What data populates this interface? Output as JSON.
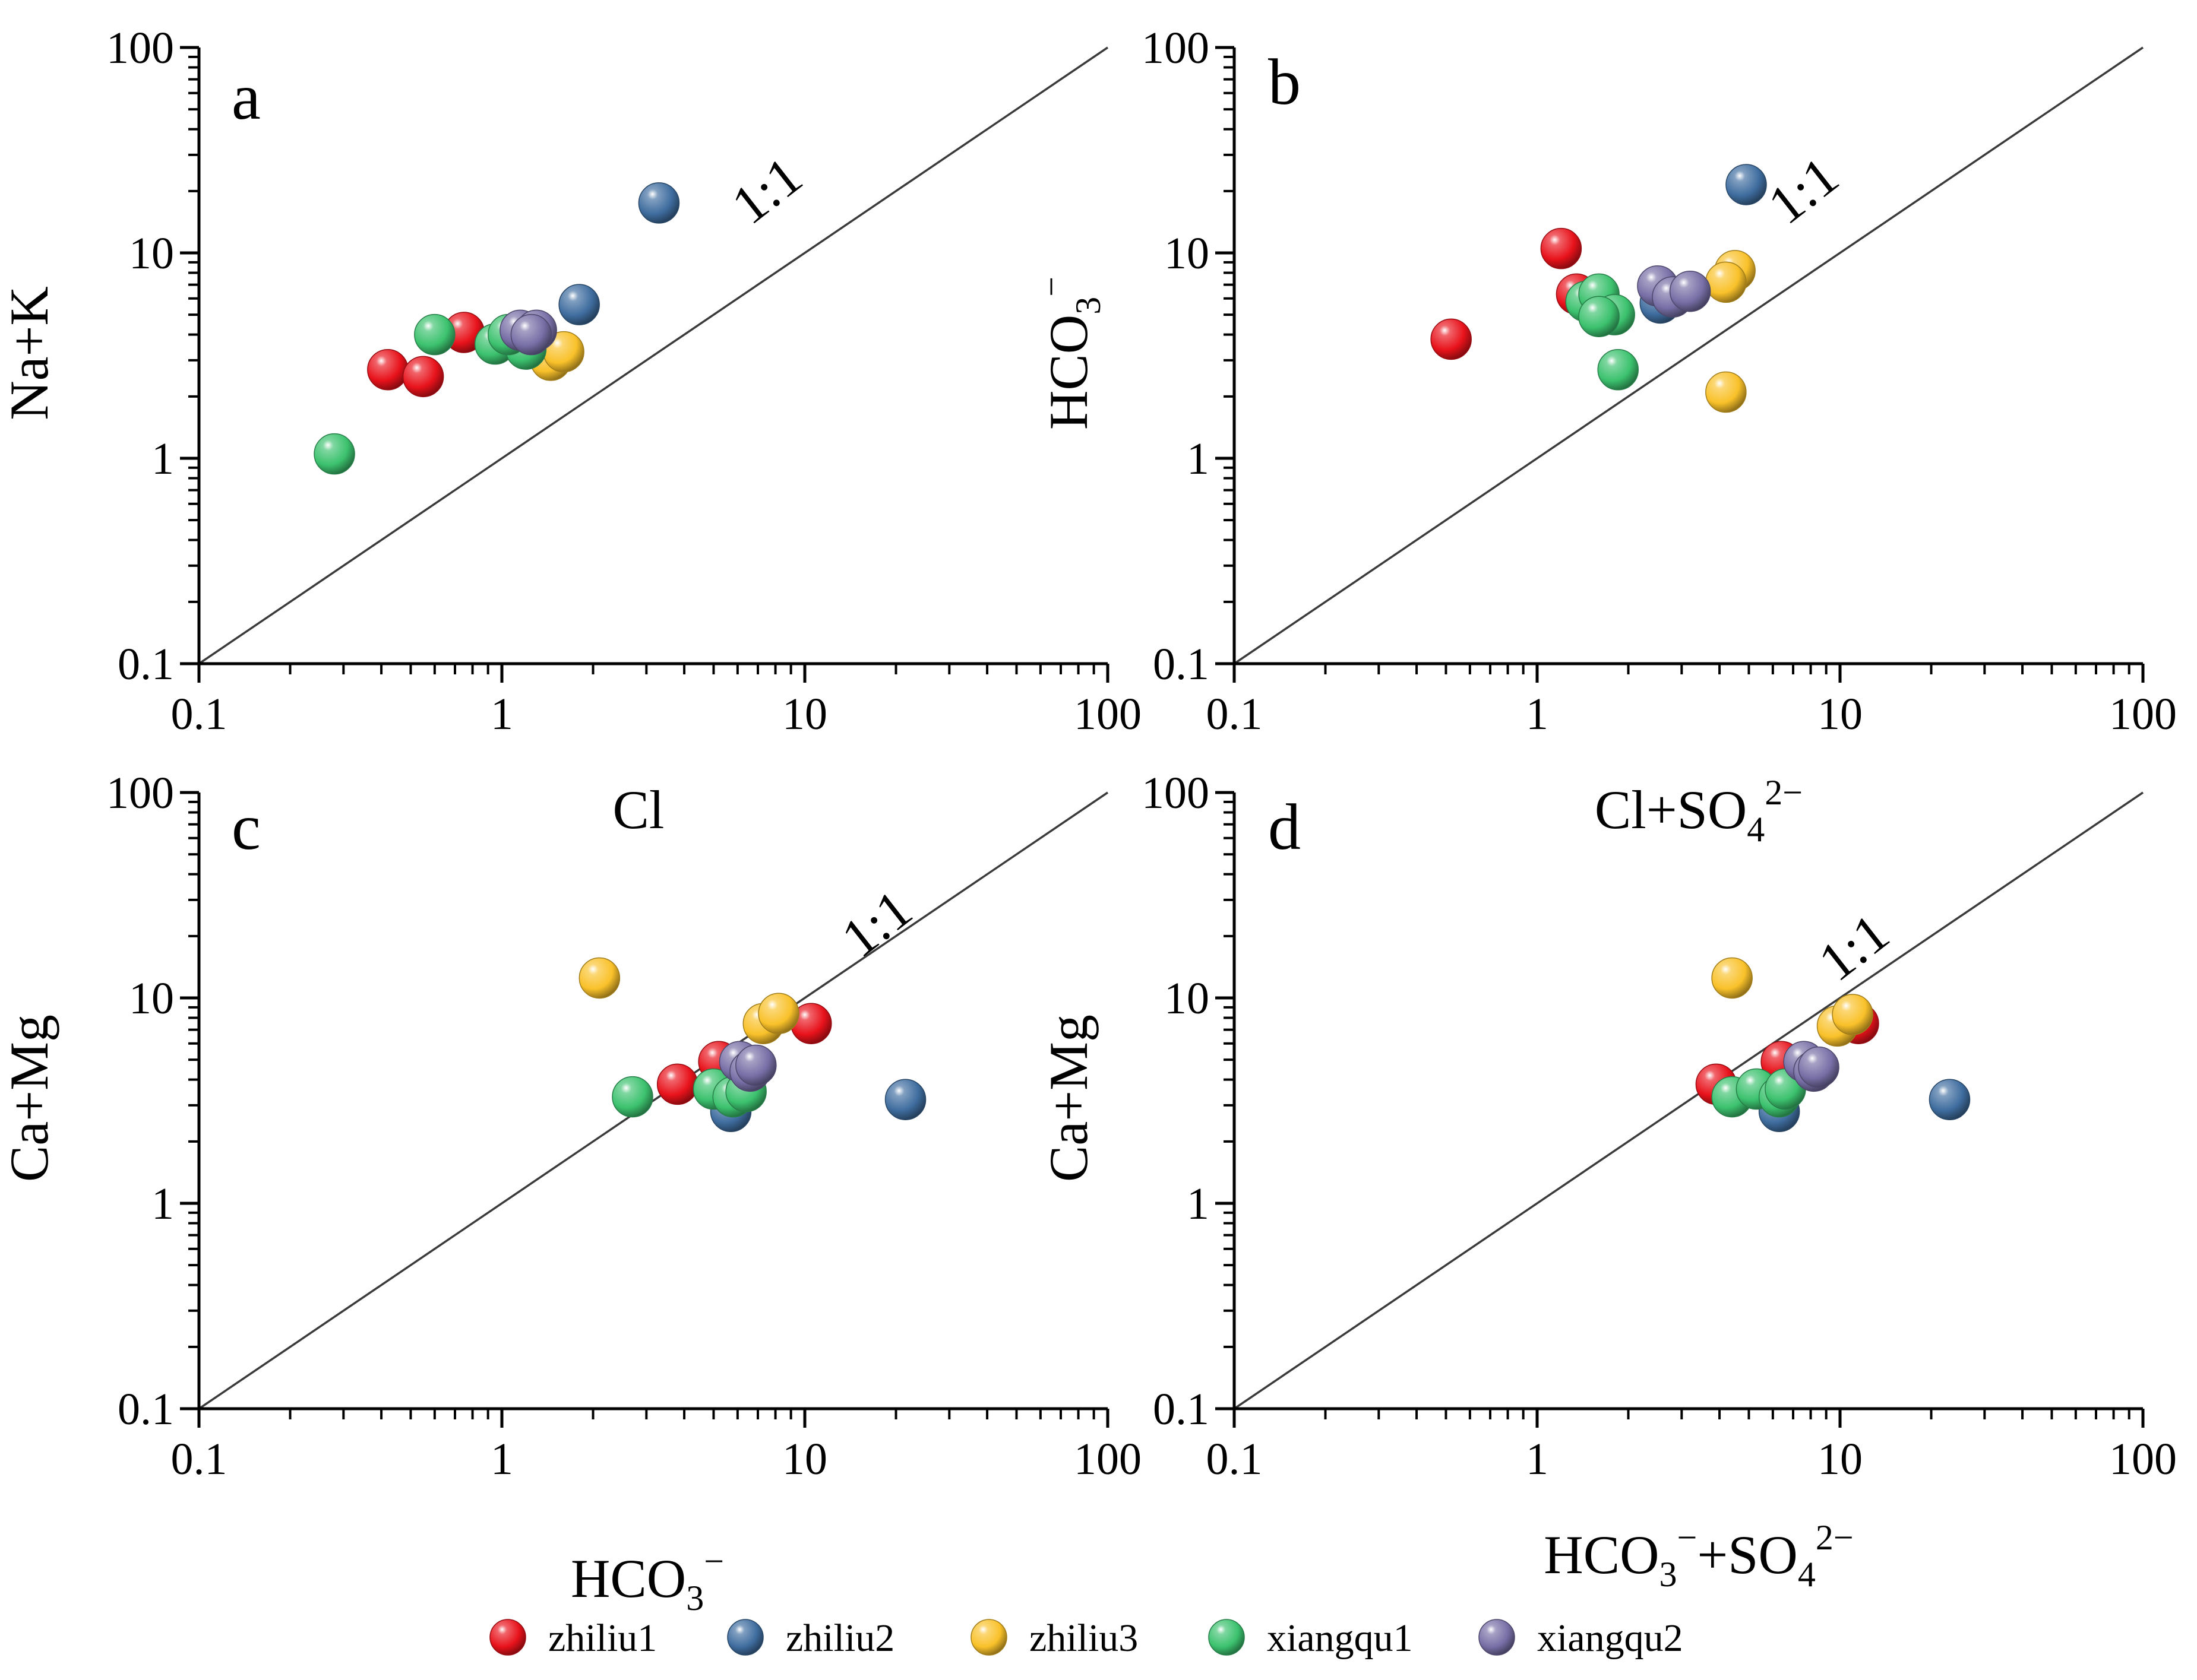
{
  "chart_data": [
    {
      "type": "scatter",
      "panel": "a",
      "xscale": "log",
      "yscale": "log",
      "xlim": [
        0.1,
        100
      ],
      "ylim": [
        0.1,
        100
      ],
      "xticks": [
        "0.1",
        "1",
        "10",
        "100"
      ],
      "yticks": [
        "0.1",
        "1",
        "10",
        "100"
      ],
      "xlabel": {
        "text": "Cl",
        "sub": "",
        "sup": "",
        "text2": "",
        "sup2": ""
      },
      "ylabel": {
        "text": "Na+K",
        "sub": "",
        "sup": ""
      },
      "ref_line_label": "1:1",
      "series": [
        {
          "name": "zhiliu1",
          "points": [
            [
              0.75,
              4.1
            ],
            [
              0.42,
              2.7
            ],
            [
              0.55,
              2.5
            ]
          ]
        },
        {
          "name": "zhiliu2",
          "points": [
            [
              3.3,
              17.5
            ],
            [
              1.8,
              5.6
            ]
          ]
        },
        {
          "name": "zhiliu3",
          "points": [
            [
              1.45,
              3.0
            ],
            [
              1.6,
              3.3
            ]
          ]
        },
        {
          "name": "xiangqu1",
          "points": [
            [
              0.28,
              1.05
            ],
            [
              0.6,
              4.0
            ],
            [
              0.95,
              3.6
            ],
            [
              1.2,
              3.4
            ],
            [
              1.05,
              4.0
            ]
          ]
        },
        {
          "name": "xiangqu2",
          "points": [
            [
              1.15,
              4.2
            ],
            [
              1.3,
              4.2
            ],
            [
              1.25,
              4.0
            ]
          ]
        }
      ]
    },
    {
      "type": "scatter",
      "panel": "b",
      "xscale": "log",
      "yscale": "log",
      "xlim": [
        0.1,
        100
      ],
      "ylim": [
        0.1,
        100
      ],
      "xticks": [
        "0.1",
        "1",
        "10",
        "100"
      ],
      "yticks": [
        "0.1",
        "1",
        "10",
        "100"
      ],
      "xlabel": {
        "text": "Cl+SO",
        "sub": "4",
        "sup": "2−",
        "text2": "",
        "sup2": ""
      },
      "ylabel": {
        "text": "HCO",
        "sub": "3",
        "sup": "−"
      },
      "ref_line_label": "1:1",
      "series": [
        {
          "name": "zhiliu1",
          "points": [
            [
              0.52,
              3.8
            ],
            [
              1.2,
              10.5
            ],
            [
              1.35,
              6.3
            ]
          ]
        },
        {
          "name": "zhiliu2",
          "points": [
            [
              4.9,
              21.5
            ],
            [
              2.55,
              5.7
            ]
          ]
        },
        {
          "name": "zhiliu3",
          "points": [
            [
              4.5,
              8.2
            ],
            [
              4.2,
              7.2
            ],
            [
              4.2,
              2.1
            ]
          ]
        },
        {
          "name": "xiangqu1",
          "points": [
            [
              1.85,
              2.7
            ],
            [
              1.45,
              5.8
            ],
            [
              1.6,
              6.3
            ],
            [
              1.8,
              5.0
            ],
            [
              1.6,
              4.9
            ]
          ]
        },
        {
          "name": "xiangqu2",
          "points": [
            [
              2.5,
              6.9
            ],
            [
              2.8,
              6.1
            ],
            [
              3.2,
              6.5
            ]
          ]
        }
      ]
    },
    {
      "type": "scatter",
      "panel": "c",
      "xscale": "log",
      "yscale": "log",
      "xlim": [
        0.1,
        100
      ],
      "ylim": [
        0.1,
        100
      ],
      "xticks": [
        "0.1",
        "1",
        "10",
        "100"
      ],
      "yticks": [
        "0.1",
        "1",
        "10",
        "100"
      ],
      "xlabel": {
        "text": "HCO",
        "sub": "3",
        "sup": "−",
        "text2": "",
        "sup2": ""
      },
      "ylabel": {
        "text": "Ca+Mg",
        "sub": "",
        "sup": ""
      },
      "ref_line_label": "1:1",
      "series": [
        {
          "name": "zhiliu1",
          "points": [
            [
              3.8,
              3.8
            ],
            [
              5.2,
              4.9
            ],
            [
              10.5,
              7.5
            ]
          ]
        },
        {
          "name": "zhiliu2",
          "points": [
            [
              21.5,
              3.2
            ],
            [
              5.7,
              2.8
            ]
          ]
        },
        {
          "name": "zhiliu3",
          "points": [
            [
              2.1,
              12.5
            ],
            [
              7.3,
              7.5
            ],
            [
              8.2,
              8.4
            ]
          ]
        },
        {
          "name": "xiangqu1",
          "points": [
            [
              2.7,
              3.3
            ],
            [
              5.0,
              3.6
            ],
            [
              5.8,
              3.3
            ],
            [
              6.4,
              3.5
            ]
          ]
        },
        {
          "name": "xiangqu2",
          "points": [
            [
              6.1,
              4.9
            ],
            [
              6.6,
              4.4
            ],
            [
              6.9,
              4.7
            ]
          ]
        }
      ]
    },
    {
      "type": "scatter",
      "panel": "d",
      "xscale": "log",
      "yscale": "log",
      "xlim": [
        0.1,
        100
      ],
      "ylim": [
        0.1,
        100
      ],
      "xticks": [
        "0.1",
        "1",
        "10",
        "100"
      ],
      "yticks": [
        "0.1",
        "1",
        "10",
        "100"
      ],
      "xlabel": {
        "text": "HCO",
        "sub": "3",
        "sup": "−",
        "text2": "+SO",
        "sub2": "4",
        "sup2": "2−"
      },
      "ylabel": {
        "text": "Ca+Mg",
        "sub": "",
        "sup": ""
      },
      "ref_line_label": "1:1",
      "series": [
        {
          "name": "zhiliu1",
          "points": [
            [
              3.9,
              3.8
            ],
            [
              6.4,
              4.9
            ],
            [
              11.5,
              7.5
            ]
          ]
        },
        {
          "name": "zhiliu2",
          "points": [
            [
              23.0,
              3.2
            ],
            [
              6.3,
              2.8
            ]
          ]
        },
        {
          "name": "zhiliu3",
          "points": [
            [
              4.4,
              12.5
            ],
            [
              9.8,
              7.3
            ],
            [
              11.0,
              8.3
            ]
          ]
        },
        {
          "name": "xiangqu1",
          "points": [
            [
              4.4,
              3.3
            ],
            [
              5.3,
              3.6
            ],
            [
              6.3,
              3.3
            ],
            [
              6.6,
              3.6
            ]
          ]
        },
        {
          "name": "xiangqu2",
          "points": [
            [
              7.6,
              4.9
            ],
            [
              8.2,
              4.4
            ],
            [
              8.5,
              4.6
            ]
          ]
        }
      ]
    }
  ],
  "legend": {
    "items": [
      {
        "name": "zhiliu1",
        "color": "#e8121b"
      },
      {
        "name": "zhiliu2",
        "color": "#3f6d9f"
      },
      {
        "name": "zhiliu3",
        "color": "#f9c12a"
      },
      {
        "name": "xiangqu1",
        "color": "#3cc26e"
      },
      {
        "name": "xiangqu2",
        "color": "#776fa6"
      }
    ]
  }
}
